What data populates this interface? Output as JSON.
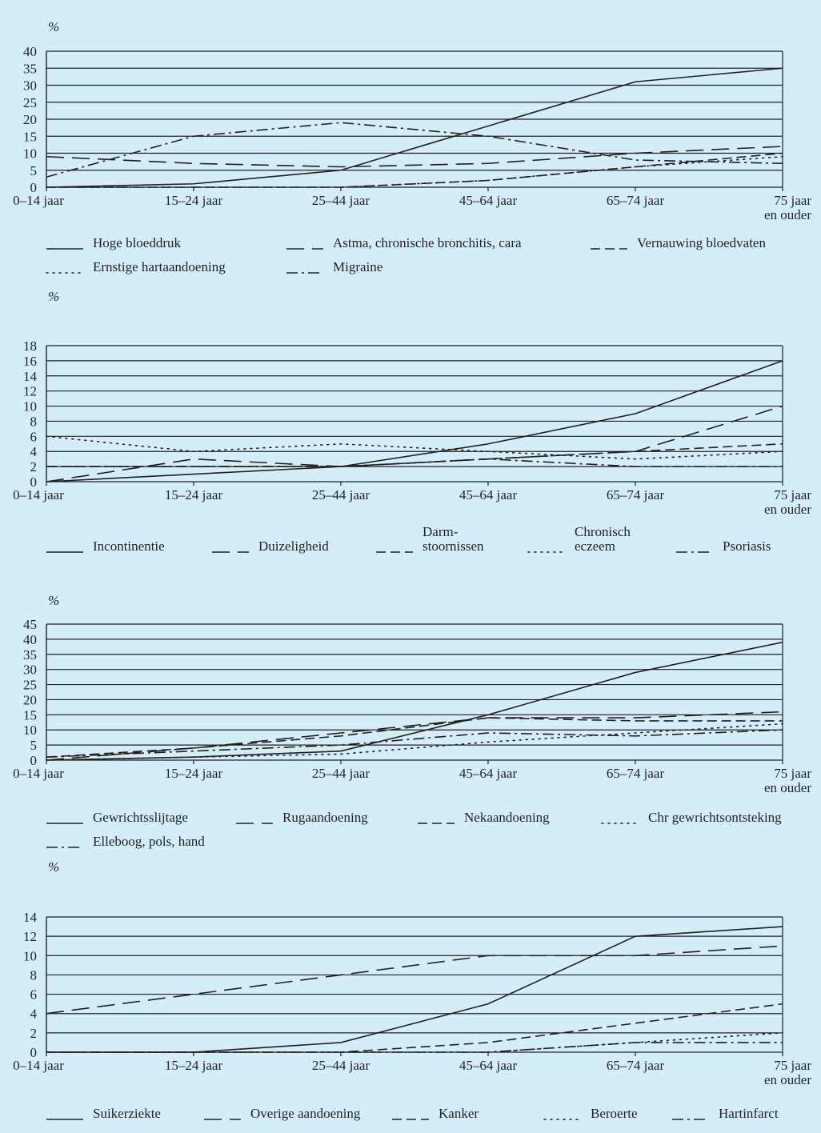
{
  "chart_data": [
    {
      "type": "line",
      "ylabel": "%",
      "ylim": [
        0,
        40
      ],
      "yticks": [
        "0",
        "5",
        "10",
        "15",
        "20",
        "25",
        "30",
        "35",
        "40"
      ],
      "categories": [
        [
          "0–14 jaar"
        ],
        [
          "15–24 jaar"
        ],
        [
          "25–44 jaar"
        ],
        [
          "45–64 jaar"
        ],
        [
          "65–74 jaar"
        ],
        [
          "75 jaar",
          "en ouder"
        ]
      ],
      "series": [
        {
          "name": [
            "Hoge bloeddruk"
          ],
          "style": "solid",
          "values": [
            0,
            1,
            5,
            18,
            31,
            35
          ]
        },
        {
          "name": [
            "Astma, chronische bronchitis, cara"
          ],
          "style": "longdash",
          "values": [
            9,
            7,
            6,
            7,
            10,
            12
          ]
        },
        {
          "name": [
            "Vernauwing bloedvaten"
          ],
          "style": "dash",
          "values": [
            0,
            0,
            0,
            2,
            6,
            10
          ]
        },
        {
          "name": [
            "Ernstige hartaandoening"
          ],
          "style": "dot",
          "values": [
            0,
            0,
            0,
            2,
            6,
            9
          ]
        },
        {
          "name": [
            "Migraine"
          ],
          "style": "dashdot",
          "values": [
            3,
            15,
            19,
            15,
            8,
            7
          ]
        }
      ]
    },
    {
      "type": "line",
      "ylabel": "%",
      "ylim": [
        0,
        18
      ],
      "yticks": [
        "0",
        "2",
        "4",
        "6",
        "8",
        "10",
        "12",
        "14",
        "16",
        "18"
      ],
      "categories": [
        [
          "0–14 jaar"
        ],
        [
          "15–24 jaar"
        ],
        [
          "25–44 jaar"
        ],
        [
          "45–64 jaar"
        ],
        [
          "65–74 jaar"
        ],
        [
          "75 jaar",
          "en ouder"
        ]
      ],
      "series": [
        {
          "name": [
            "Incontinentie"
          ],
          "style": "solid",
          "values": [
            0,
            1,
            2,
            5,
            9,
            16
          ]
        },
        {
          "name": [
            "Duizeligheid"
          ],
          "style": "longdash",
          "values": [
            0,
            3,
            2,
            3,
            4,
            10
          ]
        },
        {
          "name": [
            "Darm-",
            "stoornissen"
          ],
          "style": "dash",
          "values": [
            2,
            2,
            2,
            3,
            4,
            5
          ]
        },
        {
          "name": [
            "Chronisch",
            "eczeem"
          ],
          "style": "dot",
          "values": [
            6,
            4,
            5,
            4,
            3,
            4
          ]
        },
        {
          "name": [
            "Psoriasis"
          ],
          "style": "dashdot",
          "values": [
            2,
            2,
            2,
            3,
            2,
            2
          ]
        }
      ]
    },
    {
      "type": "line",
      "ylabel": "%",
      "ylim": [
        0,
        45
      ],
      "yticks": [
        "0",
        "5",
        "10",
        "15",
        "20",
        "25",
        "30",
        "35",
        "40",
        "45"
      ],
      "categories": [
        [
          "0–14 jaar"
        ],
        [
          "15–24 jaar"
        ],
        [
          "25–44 jaar"
        ],
        [
          "45–64 jaar"
        ],
        [
          "65–74 jaar"
        ],
        [
          "75 jaar",
          "en ouder"
        ]
      ],
      "series": [
        {
          "name": [
            "Gewrichtsslijtage"
          ],
          "style": "solid",
          "values": [
            0,
            1,
            3,
            15,
            29,
            39
          ]
        },
        {
          "name": [
            "Rugaandoening"
          ],
          "style": "longdash",
          "values": [
            0,
            4,
            9,
            14,
            14,
            16
          ]
        },
        {
          "name": [
            "Nekaandoening"
          ],
          "style": "dash",
          "values": [
            1,
            4,
            8,
            14,
            13,
            13
          ]
        },
        {
          "name": [
            "Chr gewrichtsontsteking"
          ],
          "style": "dot",
          "values": [
            0,
            1,
            2,
            6,
            9,
            12
          ]
        },
        {
          "name": [
            "Elleboog, pols, hand"
          ],
          "style": "dashdot",
          "values": [
            1,
            3,
            5,
            9,
            8,
            10
          ]
        }
      ]
    },
    {
      "type": "line",
      "ylabel": "%",
      "ylim": [
        0,
        14
      ],
      "yticks": [
        "0",
        "2",
        "4",
        "6",
        "8",
        "10",
        "12",
        "14"
      ],
      "categories": [
        [
          "0–14 jaar"
        ],
        [
          "15–24 jaar"
        ],
        [
          "25–44 jaar"
        ],
        [
          "45–64 jaar"
        ],
        [
          "65–74 jaar"
        ],
        [
          "75 jaar",
          "en ouder"
        ]
      ],
      "series": [
        {
          "name": [
            "Suikerziekte"
          ],
          "style": "solid",
          "values": [
            0,
            0,
            1,
            5,
            12,
            13
          ]
        },
        {
          "name": [
            "Overige aandoening"
          ],
          "style": "longdash",
          "values": [
            4,
            6,
            8,
            10,
            10,
            11
          ]
        },
        {
          "name": [
            "Kanker"
          ],
          "style": "dash",
          "values": [
            0,
            0,
            0,
            1,
            3,
            5
          ]
        },
        {
          "name": [
            "Beroerte"
          ],
          "style": "dot",
          "values": [
            0,
            0,
            0,
            0,
            1,
            2
          ]
        },
        {
          "name": [
            "Hartinfarct"
          ],
          "style": "dashdot",
          "values": [
            0,
            0,
            0,
            0,
            1,
            1
          ]
        }
      ]
    }
  ]
}
